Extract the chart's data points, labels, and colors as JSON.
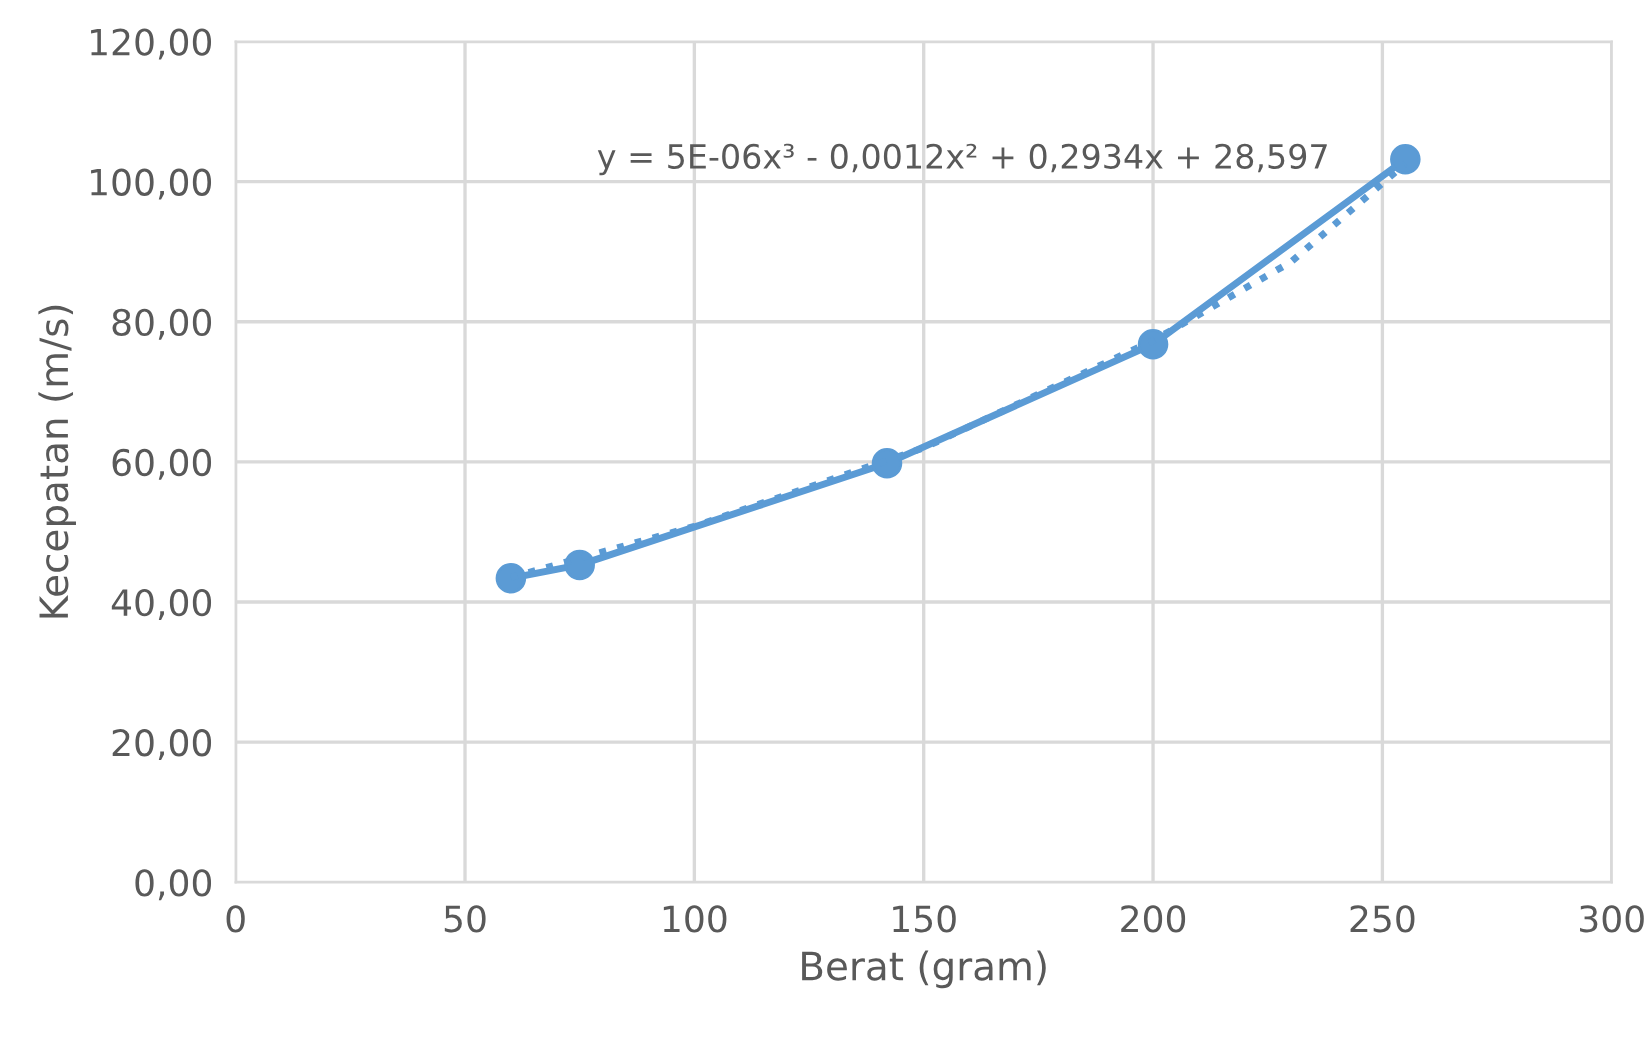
{
  "chart_data": {
    "type": "line",
    "xlabel": "Berat (gram)",
    "ylabel": "Kecepatan (m/s)",
    "series": [
      {
        "color": "#5b9bd5",
        "marker": "circle",
        "line_style": "solid",
        "x": [
          60,
          75,
          142,
          200,
          255
        ],
        "values": [
          43.4,
          45.3,
          59.8,
          76.8,
          103.2
        ]
      },
      {
        "color": "#5b9bd5",
        "marker": "none",
        "line_style": "dotted",
        "x": [
          60,
          100,
          150,
          200,
          230,
          255
        ],
        "values": [
          43.5,
          50.8,
          62.0,
          77.3,
          88.5,
          102.6
        ]
      }
    ],
    "annotations": [
      "y = 5E-06x³ - 0,0012x² + 0,2934x + 28,597"
    ],
    "xlim": [
      0,
      300
    ],
    "xticks": [
      0,
      50,
      100,
      150,
      200,
      250,
      300
    ],
    "ylim": [
      0,
      120
    ],
    "yticks": [
      {
        "value": 0,
        "label": "0,00"
      },
      {
        "value": 20,
        "label": "20,00"
      },
      {
        "value": 40,
        "label": "40,00"
      },
      {
        "value": 60,
        "label": "60,00"
      },
      {
        "value": 80,
        "label": "80,00"
      },
      {
        "value": 100,
        "label": "100,00"
      },
      {
        "value": 120,
        "label": "120,00"
      }
    ],
    "grid": true
  }
}
